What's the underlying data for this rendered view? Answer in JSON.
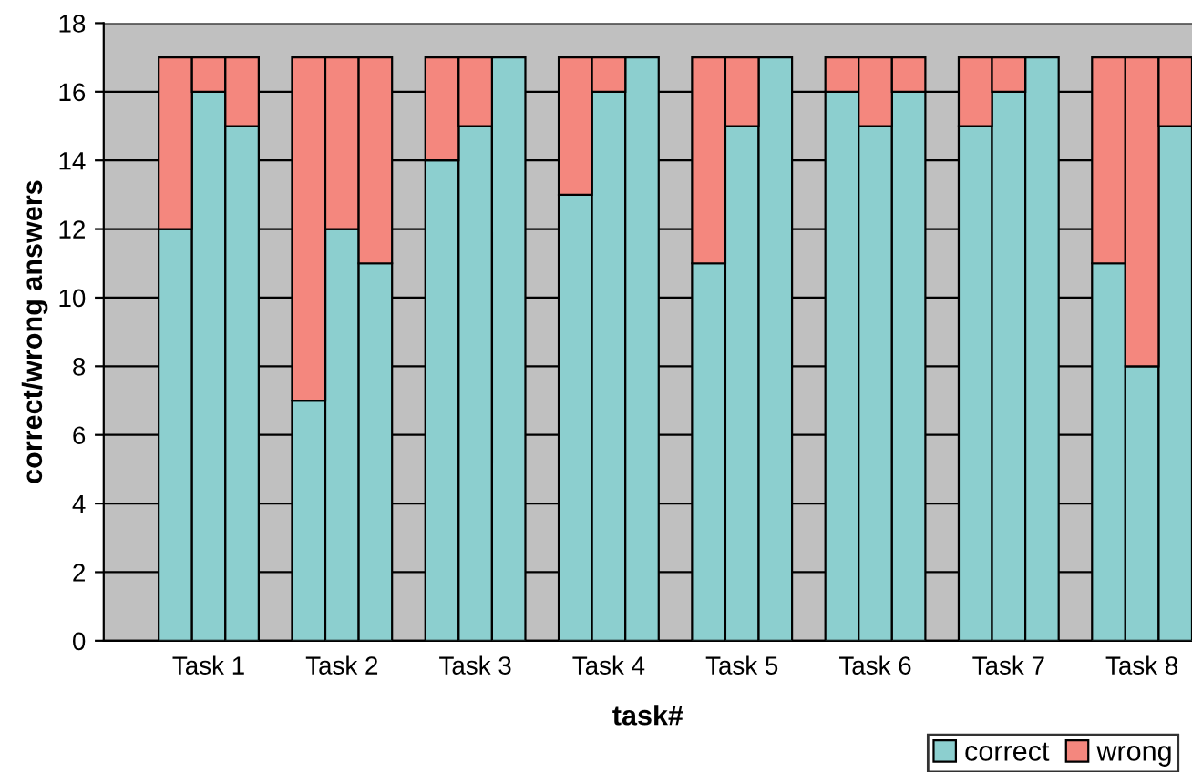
{
  "chart_data": {
    "type": "bar",
    "stacked": true,
    "xlabel": "task#",
    "ylabel": "correct/wrong answers",
    "categories": [
      null,
      null,
      "Task 1",
      null,
      null,
      null,
      "Task 2",
      null,
      null,
      null,
      "Task 3",
      null,
      null,
      null,
      "Task 4",
      null,
      null,
      null,
      "Task 5",
      null,
      null,
      null,
      "Task 6",
      null,
      null,
      null,
      "Task 7",
      null,
      null,
      null,
      "Task 8",
      null
    ],
    "series": [
      {
        "name": "correct",
        "color": "#8ccfcf",
        "values": [
          null,
          12,
          16,
          15,
          null,
          7,
          12,
          11,
          null,
          14,
          15,
          17,
          null,
          13,
          16,
          17,
          null,
          11,
          15,
          17,
          null,
          16,
          15,
          16,
          null,
          15,
          16,
          17,
          null,
          11,
          8,
          15
        ]
      },
      {
        "name": "wrong",
        "color": "#f4877e",
        "values": [
          null,
          5,
          1,
          2,
          null,
          10,
          5,
          6,
          null,
          3,
          2,
          0,
          null,
          4,
          1,
          0,
          null,
          6,
          2,
          0,
          null,
          1,
          2,
          1,
          null,
          2,
          1,
          0,
          null,
          6,
          9,
          2
        ]
      }
    ],
    "ylim": [
      0,
      18
    ],
    "yticks": [
      0,
      2,
      4,
      6,
      8,
      10,
      12,
      14,
      16,
      18
    ],
    "grid": "y",
    "legend": "bottom right"
  }
}
